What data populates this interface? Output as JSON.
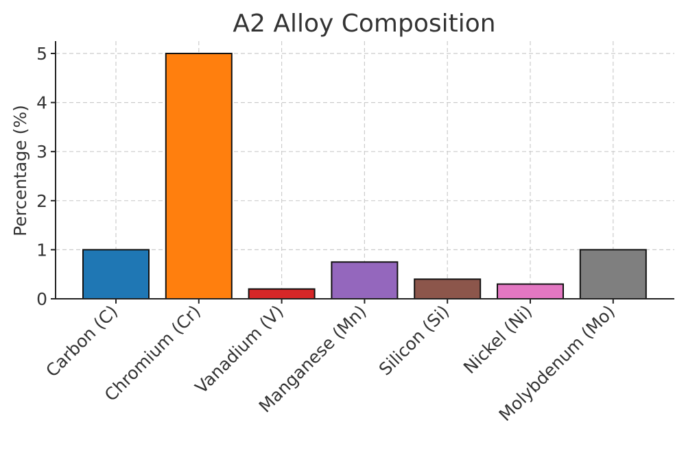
{
  "chart_data": {
    "type": "bar",
    "title": "A2 Alloy Composition",
    "xlabel": "",
    "ylabel": "Percentage (%)",
    "categories": [
      "Carbon (C)",
      "Chromium (Cr)",
      "Vanadium (V)",
      "Manganese (Mn)",
      "Silicon (Si)",
      "Nickel (Ni)",
      "Molybdenum (Mo)"
    ],
    "values": [
      1.0,
      5.0,
      0.2,
      0.75,
      0.4,
      0.3,
      1.0
    ],
    "colors": [
      "#1f77b4",
      "#ff7f0e",
      "#d62728",
      "#9467bd",
      "#8c564b",
      "#e377c2",
      "#7f7f7f"
    ],
    "ylim": [
      0,
      5.2
    ],
    "yticks": [
      0,
      1,
      2,
      3,
      4,
      5
    ],
    "grid": true,
    "legend": "none"
  }
}
